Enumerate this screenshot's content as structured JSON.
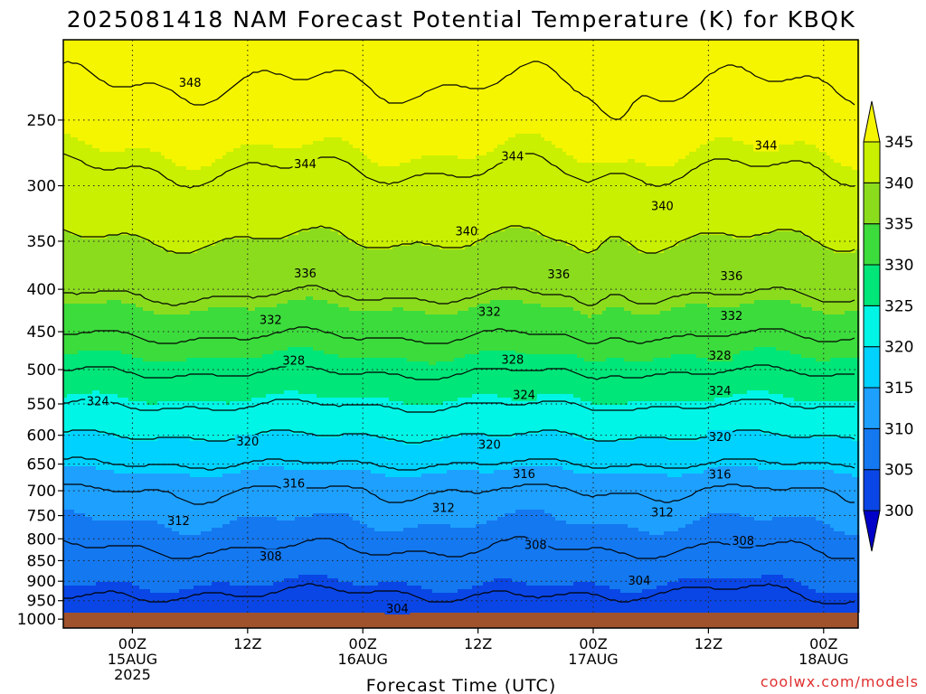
{
  "page": {
    "title": "2025081418 NAM Forecast Potential Temperature (K) for KBQK",
    "credit": "coolwx.com/models"
  },
  "chart_data": {
    "type": "heatmap",
    "title": "2025081418 NAM Forecast Potential Temperature (K) for KBQK",
    "xlabel": "Forecast Time (UTC)",
    "ylabel": "",
    "y_axis": {
      "label": "",
      "scale": "log",
      "inverted": true,
      "range_hpa": [
        1025,
        200
      ],
      "ticks": [
        250,
        300,
        350,
        400,
        450,
        500,
        550,
        600,
        650,
        700,
        750,
        800,
        850,
        900,
        950,
        1000
      ]
    },
    "x_axis": {
      "range_hours": [
        -6,
        63
      ],
      "ticks": [
        {
          "hour": 0,
          "lines": [
            "00Z",
            "15AUG",
            "2025"
          ]
        },
        {
          "hour": 10,
          "lines": [
            "12Z"
          ]
        },
        {
          "hour": 20,
          "lines": [
            "00Z",
            "16AUG"
          ]
        },
        {
          "hour": 30,
          "lines": [
            "12Z"
          ]
        },
        {
          "hour": 40,
          "lines": [
            "00Z",
            "17AUG"
          ]
        },
        {
          "hour": 50,
          "lines": [
            "12Z"
          ]
        },
        {
          "hour": 60,
          "lines": [
            "00Z",
            "18AUG"
          ]
        }
      ]
    },
    "grid": true,
    "colorbar": {
      "levels": [
        300,
        305,
        310,
        315,
        320,
        325,
        330,
        335,
        340,
        345
      ],
      "labels": [
        "300",
        "305",
        "310",
        "315",
        "320",
        "325",
        "330",
        "335",
        "340",
        "345"
      ],
      "colors": [
        "#0000c8",
        "#0a46e6",
        "#1478f0",
        "#1ea0ff",
        "#00d2ff",
        "#00f5e6",
        "#00e678",
        "#3cdc3c",
        "#8cdc1e",
        "#c8f000",
        "#f5f500"
      ],
      "extend": "both",
      "position": "right"
    },
    "contour_interval_k": 4,
    "labeled_contours": [
      {
        "value": 348,
        "hour": 5,
        "pressure_hpa": 225
      },
      {
        "value": 344,
        "hour": 15,
        "pressure_hpa": 282
      },
      {
        "value": 344,
        "hour": 33,
        "pressure_hpa": 276
      },
      {
        "value": 344,
        "hour": 55,
        "pressure_hpa": 268
      },
      {
        "value": 340,
        "hour": 29,
        "pressure_hpa": 340
      },
      {
        "value": 340,
        "hour": 46,
        "pressure_hpa": 317
      },
      {
        "value": 336,
        "hour": 15,
        "pressure_hpa": 382
      },
      {
        "value": 336,
        "hour": 37,
        "pressure_hpa": 383
      },
      {
        "value": 336,
        "hour": 52,
        "pressure_hpa": 385
      },
      {
        "value": 332,
        "hour": 12,
        "pressure_hpa": 435
      },
      {
        "value": 332,
        "hour": 31,
        "pressure_hpa": 425
      },
      {
        "value": 332,
        "hour": 52,
        "pressure_hpa": 430
      },
      {
        "value": 328,
        "hour": 14,
        "pressure_hpa": 487
      },
      {
        "value": 328,
        "hour": 33,
        "pressure_hpa": 486
      },
      {
        "value": 328,
        "hour": 51,
        "pressure_hpa": 480
      },
      {
        "value": 324,
        "hour": -3,
        "pressure_hpa": 545
      },
      {
        "value": 324,
        "hour": 34,
        "pressure_hpa": 536
      },
      {
        "value": 324,
        "hour": 51,
        "pressure_hpa": 530
      },
      {
        "value": 320,
        "hour": 10,
        "pressure_hpa": 610
      },
      {
        "value": 320,
        "hour": 31,
        "pressure_hpa": 615
      },
      {
        "value": 320,
        "hour": 51,
        "pressure_hpa": 602
      },
      {
        "value": 316,
        "hour": 14,
        "pressure_hpa": 685
      },
      {
        "value": 316,
        "hour": 34,
        "pressure_hpa": 667
      },
      {
        "value": 316,
        "hour": 51,
        "pressure_hpa": 668
      },
      {
        "value": 312,
        "hour": 4,
        "pressure_hpa": 760
      },
      {
        "value": 312,
        "hour": 27,
        "pressure_hpa": 733
      },
      {
        "value": 312,
        "hour": 46,
        "pressure_hpa": 742
      },
      {
        "value": 308,
        "hour": 12,
        "pressure_hpa": 838
      },
      {
        "value": 308,
        "hour": 35,
        "pressure_hpa": 813
      },
      {
        "value": 308,
        "hour": 53,
        "pressure_hpa": 803
      },
      {
        "value": 304,
        "hour": 23,
        "pressure_hpa": 970
      },
      {
        "value": 304,
        "hour": 44,
        "pressure_hpa": 897
      }
    ]
  }
}
